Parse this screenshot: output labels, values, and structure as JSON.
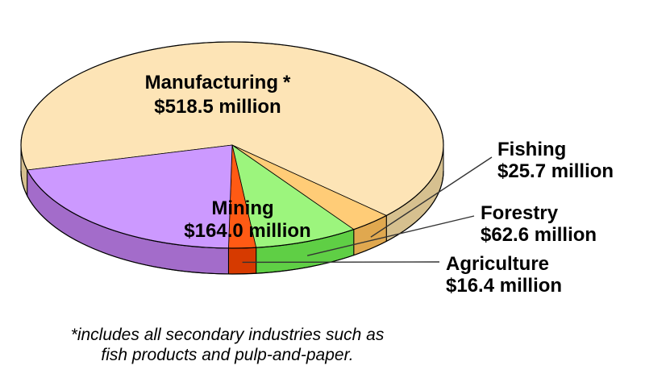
{
  "chart_data": {
    "type": "pie",
    "style": "3d",
    "title": "",
    "slices": [
      {
        "key": "manufacturing",
        "label": "Manufacturing",
        "marker": "*",
        "value_text": "$518.5 million",
        "value": 518.5,
        "color": "#fde4b6",
        "side_color": "#d6c08f"
      },
      {
        "key": "fishing",
        "label": "Fishing",
        "value_text": "$25.7 million",
        "value": 25.7,
        "color": "#ffcc77",
        "side_color": "#e0a84f"
      },
      {
        "key": "forestry",
        "label": "Forestry",
        "value_text": "$62.6 million",
        "value": 62.6,
        "color": "#9cf57d",
        "side_color": "#5fcf45"
      },
      {
        "key": "agriculture",
        "label": "Agriculture",
        "value_text": "$16.4 million",
        "value": 16.4,
        "color": "#ff5a14",
        "side_color": "#d63a00"
      },
      {
        "key": "mining",
        "label": "Mining",
        "value_text": "$164.0 million",
        "value": 164.0,
        "color": "#cc99ff",
        "side_color": "#a36cca"
      }
    ],
    "footnote": [
      "*includes all secondary industries such as",
      "fish products and pulp-and-paper."
    ],
    "units": "$ million"
  }
}
